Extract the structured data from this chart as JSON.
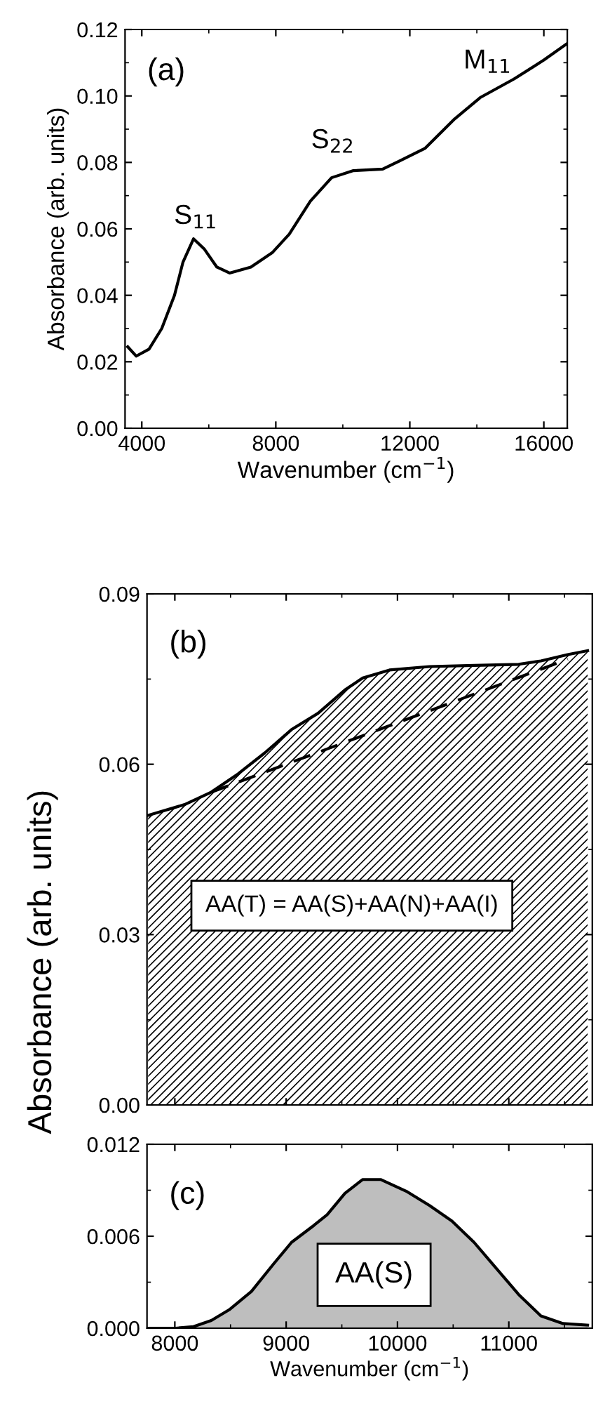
{
  "chart_data": [
    {
      "type": "line",
      "xlabel": "Wavenumber (cm$^{−1}$)",
      "ylabel": "Absorbance (arb. units)",
      "xlim": [
        3500,
        16700
      ],
      "ylim": [
        0,
        0.12
      ],
      "xticks": [
        4000,
        8000,
        12000,
        16000
      ],
      "yticks": [
        {
          "value": 0,
          "label": "0.00"
        },
        {
          "value": 0.02,
          "label": "0.02"
        },
        {
          "value": 0.04,
          "label": "0.04"
        },
        {
          "value": 0.06,
          "label": "0.06"
        },
        {
          "value": 0.08,
          "label": "0.08"
        },
        {
          "value": 0.1,
          "label": "0.10"
        },
        {
          "value": 0.12,
          "label": "0.12"
        }
      ],
      "series": [
        {
          "color": "#000000",
          "x": [
            3580,
            3835,
            4215,
            4595,
            4975,
            5230,
            5545,
            5860,
            6240,
            6620,
            7255,
            7890,
            8400,
            9030,
            9665,
            10300,
            11190,
            11690,
            12450,
            13340,
            14100,
            15110,
            16000,
            16700
          ],
          "values": [
            0.0245,
            0.0217,
            0.0238,
            0.03,
            0.04,
            0.05,
            0.057,
            0.054,
            0.0485,
            0.0467,
            0.0485,
            0.0528,
            0.0584,
            0.0683,
            0.0754,
            0.0775,
            0.078,
            0.0804,
            0.0842,
            0.0931,
            0.0995,
            0.1051,
            0.1108,
            0.1158
          ]
        }
      ],
      "annotations": [
        "(a)",
        "S$_{11}$",
        "S$_{22}$",
        "M$_{11}$"
      ]
    },
    {
      "type": "area",
      "ylabel": "Absorbance (arb. units)",
      "xlim": [
        7750,
        11750
      ],
      "ylim": [
        0,
        0.09
      ],
      "xticks": [
        {
          "value": 8000,
          "label": null
        },
        {
          "value": 9000,
          "label": null
        },
        {
          "value": 10000,
          "label": null
        },
        {
          "value": 11000,
          "label": null
        }
      ],
      "yticks": [
        {
          "value": 0,
          "label": "0.00"
        },
        {
          "value": 0.03,
          "label": "0.03"
        },
        {
          "value": 0.06,
          "label": "0.06"
        },
        {
          "value": 0.09,
          "label": "0.09"
        }
      ],
      "tick_labels": "y",
      "series": [
        {
          "color": "#000000",
          "x": [
            7760,
            8088,
            8328,
            8568,
            8808,
            9048,
            9288,
            9528,
            9688,
            9928,
            10288,
            10688,
            11088,
            11288,
            11528,
            11708
          ],
          "values": [
            0.051,
            0.0529,
            0.0551,
            0.0583,
            0.062,
            0.0661,
            0.069,
            0.0731,
            0.0752,
            0.0766,
            0.0772,
            0.0774,
            0.0776,
            0.0782,
            0.0793,
            0.08
          ]
        },
        {
          "type": "line",
          "line_style": "dashed",
          "color": "#000000",
          "x": [
            8330,
            11530
          ],
          "values": [
            0.0551,
            0.0785
          ]
        }
      ],
      "annotations": [
        "(b)",
        "AA(T) = AA(S)+AA(N)+AA(I)"
      ]
    },
    {
      "type": "area",
      "xlabel": "Wavenumber (cm$^{−1}$)",
      "xlim": [
        7750,
        11750
      ],
      "ylim": [
        0,
        0.012
      ],
      "xticks": [
        8000,
        9000,
        10000,
        11000
      ],
      "yticks": [
        {
          "value": 0,
          "label": "0.000"
        },
        {
          "value": 0.006,
          "label": "0.006"
        },
        {
          "value": 0.012,
          "label": "0.012"
        }
      ],
      "series": [
        {
          "color": "#bebebe",
          "x": [
            7760,
            8008,
            8168,
            8328,
            8488,
            8688,
            8888,
            9048,
            9248,
            9368,
            9528,
            9688,
            9848,
            10088,
            10288,
            10488,
            10688,
            10888,
            11088,
            11288,
            11488,
            11708
          ],
          "values": [
            0,
            0,
            0.0001,
            0.0005,
            0.0012,
            0.0024,
            0.0042,
            0.0056,
            0.0067,
            0.0074,
            0.0088,
            0.0097,
            0.0097,
            0.0089,
            0.008,
            0.007,
            0.0056,
            0.0039,
            0.0022,
            0.0008,
            0.0003,
            0.0002
          ]
        }
      ],
      "annotations": [
        "(c)",
        "AA(S)"
      ]
    }
  ]
}
